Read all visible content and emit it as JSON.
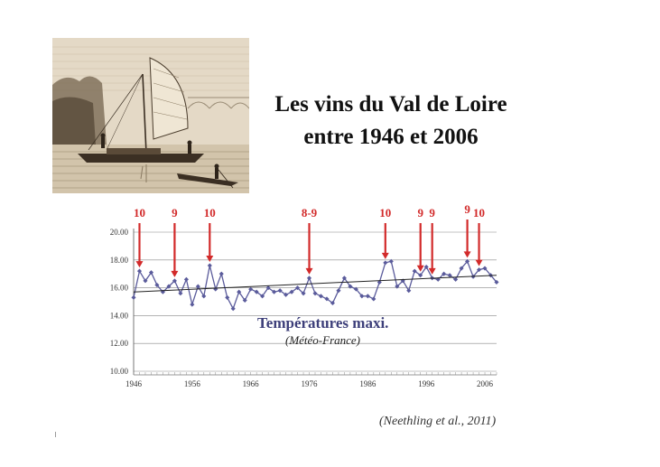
{
  "slide": {
    "title_line1": "Les vins du Val de Loire",
    "title_line2": "entre 1946 et 2006",
    "citation": "(Neethling et al., 2011)"
  },
  "image": {
    "subject": "sailboat-engraving"
  },
  "chart_data": {
    "type": "line",
    "title": "Températures maxi.",
    "subtitle": "(Météo-France)",
    "xlabel": "",
    "ylabel": "",
    "x_ticks": [
      "1946",
      "1956",
      "1966",
      "1976",
      "1986",
      "1996",
      "2006"
    ],
    "y_ticks": [
      "10.00",
      "12.00",
      "14.00",
      "16.00",
      "18.00",
      "20.00"
    ],
    "xlim": [
      1946,
      2008
    ],
    "ylim": [
      10,
      20
    ],
    "grid": true,
    "series": [
      {
        "color": "#5a5b9b",
        "x": [
          1946,
          1947,
          1948,
          1949,
          1950,
          1951,
          1952,
          1953,
          1954,
          1955,
          1956,
          1957,
          1958,
          1959,
          1960,
          1961,
          1962,
          1963,
          1964,
          1965,
          1966,
          1967,
          1968,
          1969,
          1970,
          1971,
          1972,
          1973,
          1974,
          1975,
          1976,
          1977,
          1978,
          1979,
          1980,
          1981,
          1982,
          1983,
          1984,
          1985,
          1986,
          1987,
          1988,
          1989,
          1990,
          1991,
          1992,
          1993,
          1994,
          1995,
          1996,
          1997,
          1998,
          1999,
          2000,
          2001,
          2002,
          2003,
          2004,
          2005,
          2006,
          2007,
          2008
        ],
        "values": [
          15.3,
          17.2,
          16.5,
          17.1,
          16.2,
          15.7,
          16.1,
          16.5,
          15.6,
          16.6,
          14.8,
          16.1,
          15.4,
          17.6,
          15.9,
          17.0,
          15.3,
          14.5,
          15.7,
          15.1,
          15.9,
          15.7,
          15.4,
          16.0,
          15.7,
          15.8,
          15.5,
          15.7,
          16.0,
          15.6,
          16.7,
          15.6,
          15.4,
          15.2,
          14.9,
          15.8,
          16.7,
          16.1,
          15.9,
          15.4,
          15.4,
          15.2,
          16.4,
          17.8,
          17.9,
          16.1,
          16.5,
          15.8,
          17.2,
          16.9,
          17.5,
          16.7,
          16.6,
          17.0,
          16.9,
          16.6,
          17.4,
          17.9,
          16.8,
          17.3,
          17.4,
          16.9,
          16.4
        ]
      },
      {
        "name": "trend",
        "color": "#222222",
        "x": [
          1946,
          2008
        ],
        "values": [
          15.7,
          16.9
        ]
      }
    ],
    "annotations": [
      {
        "label": "10",
        "x": 1947
      },
      {
        "label": "9",
        "x": 1953
      },
      {
        "label": "10",
        "x": 1959
      },
      {
        "label": "8-9",
        "x": 1976
      },
      {
        "label": "10",
        "x": 1989
      },
      {
        "label": "9",
        "x": 1995
      },
      {
        "label": "9",
        "x": 1997
      },
      {
        "label": "9",
        "x": 2003
      },
      {
        "label": "10",
        "x": 2005
      }
    ],
    "colors": {
      "annotation": "#d22a2a",
      "title": "#3d3f7a",
      "grid": "#888888"
    }
  }
}
